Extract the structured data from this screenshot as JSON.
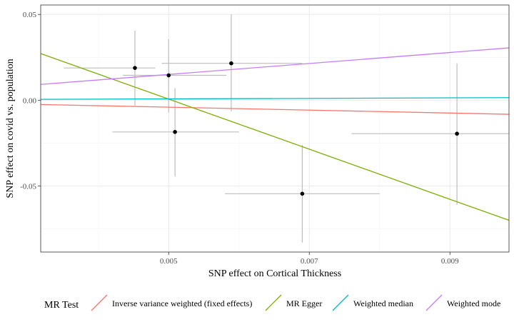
{
  "chart_data": {
    "type": "scatter",
    "xlabel": "SNP effect on Cortical Thickness",
    "ylabel": "SNP effect on covid vs. population",
    "xlim": [
      0.00318,
      0.00984
    ],
    "ylim": [
      -0.0885,
      0.0555
    ],
    "x_ticks": [
      0.005,
      0.007,
      0.009
    ],
    "x_tick_labels": [
      "0.005",
      "0.007",
      "0.009"
    ],
    "x_minor_ticks": [
      0.004,
      0.006,
      0.008
    ],
    "y_ticks": [
      -0.05,
      0.0,
      0.05
    ],
    "y_tick_labels": [
      "-0.05",
      "0.00",
      "0.05"
    ],
    "y_minor_ticks": [
      -0.075,
      -0.025,
      0.025
    ],
    "grid": true,
    "points": [
      {
        "x": 0.00452,
        "y": 0.0188,
        "x_lo": 0.00351,
        "x_hi": 0.00481,
        "y_lo": -0.0031,
        "y_hi": 0.0405
      },
      {
        "x": 0.005,
        "y": 0.0145,
        "x_lo": 0.00435,
        "x_hi": 0.00582,
        "y_lo": -0.0072,
        "y_hi": 0.0355
      },
      {
        "x": 0.00509,
        "y": -0.0185,
        "x_lo": 0.0042,
        "x_hi": 0.006,
        "y_lo": -0.0445,
        "y_hi": 0.007
      },
      {
        "x": 0.00589,
        "y": 0.0215,
        "x_lo": 0.0049,
        "x_hi": 0.0069,
        "y_lo": -0.0065,
        "y_hi": 0.05
      },
      {
        "x": 0.0069,
        "y": -0.0545,
        "x_lo": 0.0058,
        "x_hi": 0.008,
        "y_lo": -0.083,
        "y_hi": -0.026
      },
      {
        "x": 0.0091,
        "y": -0.0195,
        "x_lo": 0.0076,
        "x_hi": 0.01072,
        "y_lo": -0.061,
        "y_hi": 0.0215
      }
    ],
    "lines": [
      {
        "name": "Inverse variance weighted (fixed effects)",
        "color": "#F8766D",
        "x": [
          0.00318,
          0.00984
        ],
        "y": [
          -0.0025,
          -0.0082
        ]
      },
      {
        "name": "MR Egger",
        "color": "#7CAE00",
        "x": [
          0.00318,
          0.00984
        ],
        "y": [
          0.0272,
          -0.07
        ]
      },
      {
        "name": "Weighted median",
        "color": "#00BFC4",
        "x": [
          0.00318,
          0.00984
        ],
        "y": [
          0.0005,
          0.0015
        ]
      },
      {
        "name": "Weighted mode",
        "color": "#C77CFF",
        "x": [
          0.00318,
          0.00984
        ],
        "y": [
          0.0092,
          0.0305
        ]
      }
    ],
    "legend": {
      "title": "MR Test",
      "position": "bottom",
      "entries": [
        {
          "label": "Inverse variance weighted (fixed effects)",
          "color": "#F8766D"
        },
        {
          "label": "MR Egger",
          "color": "#7CAE00"
        },
        {
          "label": "Weighted median",
          "color": "#00BFC4"
        },
        {
          "label": "Weighted mode",
          "color": "#C77CFF"
        }
      ]
    },
    "colors": {
      "errorbar": "#bdbdbd",
      "point": "#000000",
      "grid_major": "#ebebeb",
      "grid_minor": "#f4f4f4",
      "panel_border": "#333333"
    }
  }
}
